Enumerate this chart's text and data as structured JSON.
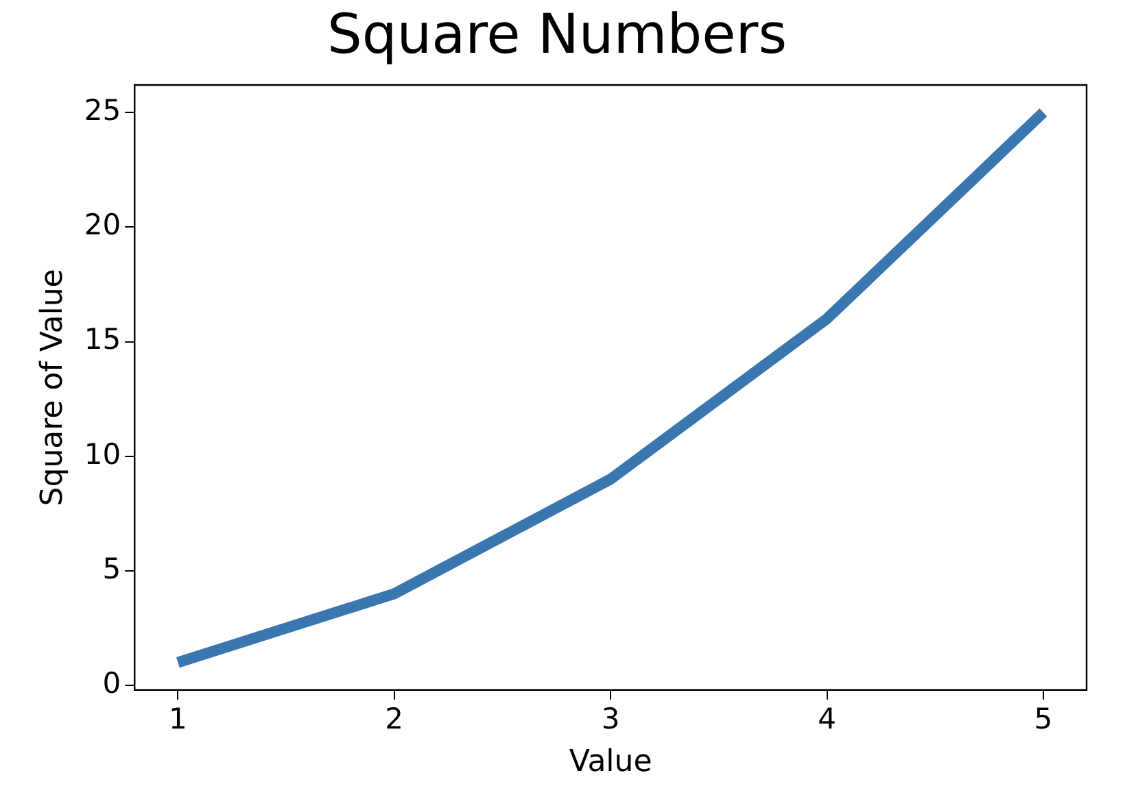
{
  "chart_data": {
    "type": "line",
    "title": "Square Numbers",
    "xlabel": "Value",
    "ylabel": "Square of Value",
    "x": [
      1,
      2,
      3,
      4,
      5
    ],
    "series": [
      {
        "color": "#3a76b0",
        "values": [
          1,
          4,
          9,
          16,
          25
        ]
      }
    ],
    "xlim": [
      0.8,
      5.2
    ],
    "xticks": [
      1,
      2,
      3,
      4,
      5
    ],
    "ylim": [
      -0.2,
      26.2
    ],
    "yticks": [
      0,
      5,
      10,
      15,
      20,
      25
    ],
    "grid": false,
    "legend": false,
    "marker": "none",
    "line_style": "solid"
  }
}
